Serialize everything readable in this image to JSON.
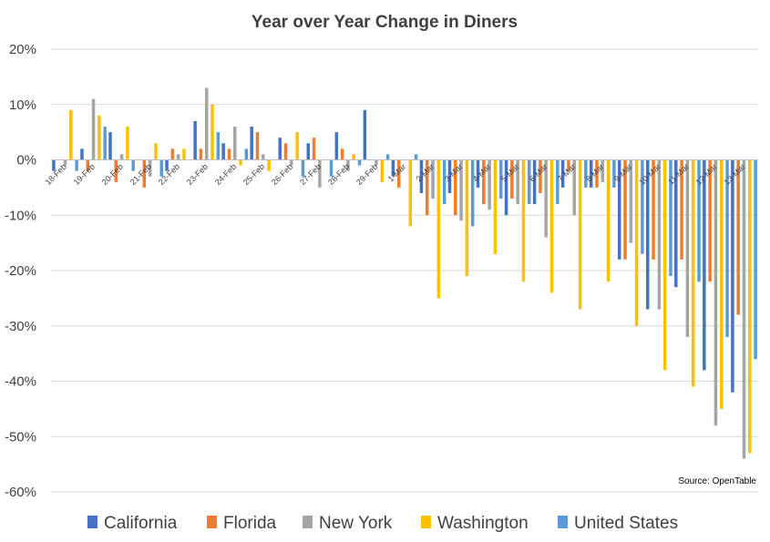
{
  "chart_data": {
    "type": "bar",
    "title": "Year over Year Change in Diners",
    "source": "Source: OpenTable",
    "ylim": [
      -60,
      20
    ],
    "yticks": [
      "20%",
      "10%",
      "0%",
      "-10%",
      "-20%",
      "-30%",
      "-40%",
      "-50%",
      "-60%"
    ],
    "ytick_values": [
      20,
      10,
      0,
      -10,
      -20,
      -30,
      -40,
      -50,
      -60
    ],
    "grid": true,
    "legend_position": "bottom",
    "categories": [
      "18-Feb",
      "19-Feb",
      "20-Feb",
      "21-Feb",
      "22-Feb",
      "23-Feb",
      "24-Feb",
      "25-Feb",
      "26-Feb",
      "27-Feb",
      "28-Feb",
      "29-Feb",
      "1-Mar",
      "2-Mar",
      "3-Mar",
      "4-Mar",
      "5-Mar",
      "6-Mar",
      "7-Mar",
      "8-Mar",
      "9-Mar",
      "10-Mar",
      "11-Mar",
      "12-Mar",
      "13-Mar"
    ],
    "series": [
      {
        "name": "California",
        "color": "#4472C4",
        "values": [
          -2,
          2,
          5,
          0,
          -2,
          7,
          3,
          6,
          4,
          3,
          5,
          9,
          -3,
          -6,
          -6,
          -5,
          -10,
          -8,
          -5,
          -5,
          -18,
          -27,
          -23,
          -38,
          -42
        ]
      },
      {
        "name": "Florida",
        "color": "#ED7D31",
        "values": [
          0,
          -2,
          -4,
          -5,
          2,
          2,
          2,
          5,
          3,
          4,
          2,
          0,
          -5,
          -10,
          -10,
          -8,
          -7,
          -6,
          -2,
          -5,
          -18,
          -18,
          -18,
          -22,
          -28
        ]
      },
      {
        "name": "New York",
        "color": "#A5A5A5",
        "values": [
          -1,
          11,
          1,
          -3,
          1,
          13,
          6,
          1,
          -1,
          -5,
          -2,
          -1,
          0,
          -7,
          -11,
          -9,
          -8,
          -14,
          -10,
          -4,
          -15,
          -27,
          -32,
          -48,
          -54
        ]
      },
      {
        "name": "Washington",
        "color": "#FFC000",
        "values": [
          9,
          8,
          6,
          3,
          2,
          10,
          -1,
          -2,
          5,
          0,
          1,
          -4,
          -12,
          -25,
          -21,
          -17,
          -22,
          -24,
          -27,
          -22,
          -30,
          -38,
          -41,
          -45,
          -53
        ]
      },
      {
        "name": "United States",
        "color": "#5B9BD5",
        "values": [
          -2,
          6,
          -2,
          -3,
          0,
          5,
          2,
          0,
          -3,
          -3,
          -1,
          1,
          1,
          -8,
          -12,
          -7,
          -8,
          -8,
          -5,
          -5,
          -17,
          -21,
          -22,
          -32,
          -36
        ]
      }
    ]
  }
}
